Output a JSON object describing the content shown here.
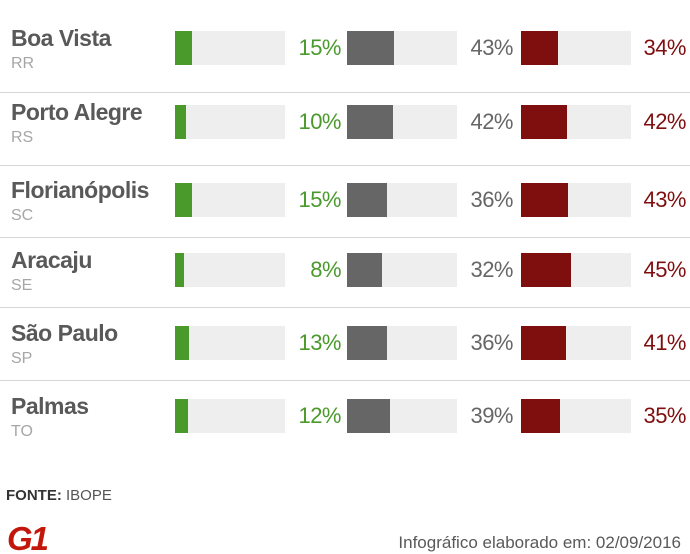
{
  "chart_data": {
    "type": "bar",
    "categories": [
      "Boa Vista",
      "Porto Alegre",
      "Florianópolis",
      "Aracaju",
      "São Paulo",
      "Palmas"
    ],
    "subtitles": [
      "RR",
      "RS",
      "SC",
      "SE",
      "SP",
      "TO"
    ],
    "series": [
      {
        "values": [
          15,
          10,
          15,
          8,
          13,
          12
        ],
        "labels": [
          "15%",
          "10%",
          "15%",
          "8%",
          "13%",
          "12%"
        ],
        "color": "#4a9a2b",
        "text_color": "#4a9a2b"
      },
      {
        "values": [
          43,
          42,
          36,
          32,
          36,
          39
        ],
        "labels": [
          "43%",
          "42%",
          "36%",
          "32%",
          "36%",
          "39%"
        ],
        "color": "#666666",
        "text_color": "#666666"
      },
      {
        "values": [
          34,
          42,
          43,
          45,
          41,
          35
        ],
        "labels": [
          "34%",
          "42%",
          "43%",
          "45%",
          "41%",
          "35%"
        ],
        "color": "#7f0f0f",
        "text_color": "#7f0f0f"
      }
    ],
    "ylim": [
      0,
      100
    ],
    "track_color": "#eeeeee"
  },
  "source": {
    "label": "FONTE:",
    "value": "IBOPE"
  },
  "logo": {
    "text": "G1",
    "color": "#c4170c"
  },
  "credit": "Infográfico elaborado em: 02/09/2016"
}
